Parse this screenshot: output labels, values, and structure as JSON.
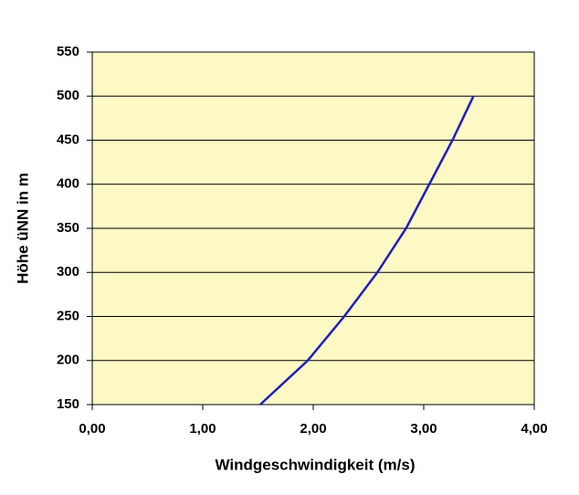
{
  "chart_data": {
    "type": "line",
    "x_label": "Windgeschwindigkeit (m/s)",
    "y_label": "Höhe üNN in m",
    "x": [
      1.52,
      1.95,
      2.28,
      2.58,
      2.84,
      3.05,
      3.26,
      3.45
    ],
    "values": [
      150,
      200,
      250,
      300,
      350,
      400,
      450,
      500
    ],
    "color": "#1c1cc8",
    "plot_background": "#fdf9c4",
    "xlim": [
      0,
      4
    ],
    "xticks": [
      {
        "value": 0,
        "label": "0,00"
      },
      {
        "value": 1,
        "label": "1,00"
      },
      {
        "value": 2,
        "label": "2,00"
      },
      {
        "value": 3,
        "label": "3,00"
      },
      {
        "value": 4,
        "label": "4,00"
      }
    ],
    "ylim": [
      150,
      550
    ],
    "yticks": [
      150,
      200,
      250,
      300,
      350,
      400,
      450,
      500,
      550
    ],
    "grid": true
  }
}
